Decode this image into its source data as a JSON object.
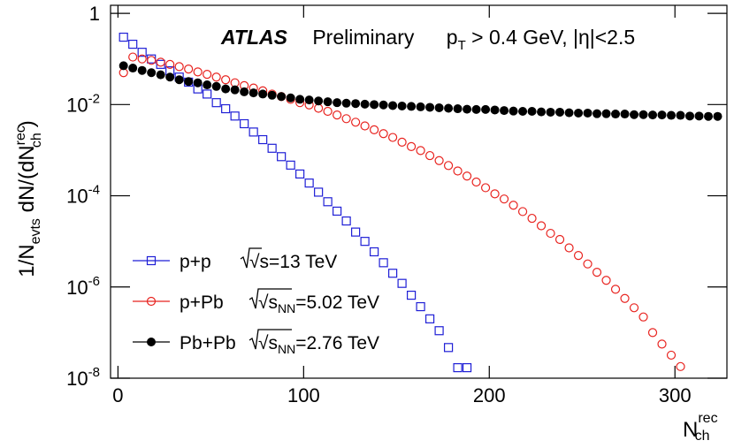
{
  "chart_data": {
    "type": "scatter",
    "log_y": true,
    "title_parts": {
      "experiment": "ATLAS",
      "status": "Preliminary",
      "cut_p": "p",
      "cut_sub": "T",
      "cut_rest": " > 0.4 GeV, |η|<2.5"
    },
    "ylabel_parts": {
      "a": "1/N",
      "a_sub": "evts",
      "b": " dN/(dN",
      "b_sup": "rec",
      "b_sub": "ch",
      "c": ")"
    },
    "xlabel_parts": {
      "a": "N",
      "a_sup": "rec",
      "a_sub": "ch"
    },
    "xlim": [
      -4,
      328
    ],
    "xticks": [
      0,
      100,
      200,
      300
    ],
    "ylim": [
      1e-08,
      1.5
    ],
    "yticks": [
      1,
      {
        "value": 0.01,
        "label": "10",
        "sup": "-2"
      },
      {
        "value": 0.0001,
        "label": "10",
        "sup": "-4"
      },
      {
        "value": 1e-06,
        "label": "10",
        "sup": "-6"
      },
      {
        "value": 1e-08,
        "label": "10",
        "sup": "-8"
      }
    ],
    "series": [
      {
        "name": "p+p",
        "energy": [
          "√s",
          "=13 TeV"
        ],
        "color": "#1f1fd6",
        "marker": "square",
        "x": [
          3,
          8,
          13,
          18,
          23,
          28,
          33,
          38,
          43,
          48,
          53,
          58,
          63,
          68,
          73,
          78,
          83,
          88,
          93,
          98,
          103,
          108,
          113,
          118,
          123,
          128,
          133,
          138,
          143,
          148,
          153,
          158,
          163,
          168,
          173,
          178,
          183,
          188
        ],
        "values": [
          0.3,
          0.21,
          0.14,
          0.1,
          0.076,
          0.055,
          0.04,
          0.031,
          0.022,
          0.017,
          0.011,
          0.0081,
          0.0056,
          0.0038,
          0.0025,
          0.0017,
          0.0011,
          0.00072,
          0.00047,
          0.0003,
          0.00019,
          0.00012,
          7.4e-05,
          4.6e-05,
          2.8e-05,
          1.6e-05,
          1e-05,
          5.9e-06,
          3.4e-06,
          2e-06,
          1.2e-06,
          6.6e-07,
          3.7e-07,
          2e-07,
          1.1e-07,
          4.7e-08,
          1.7e-08,
          1.7e-08
        ]
      },
      {
        "name": "p+Pb",
        "energy": [
          "√s",
          "NN",
          "=5.02 TeV"
        ],
        "color": "#e8231f",
        "marker": "circle",
        "x": [
          3,
          8,
          13,
          18,
          23,
          28,
          33,
          38,
          43,
          48,
          53,
          58,
          63,
          68,
          73,
          78,
          83,
          88,
          93,
          98,
          103,
          108,
          113,
          118,
          123,
          128,
          133,
          138,
          143,
          148,
          153,
          158,
          163,
          168,
          173,
          178,
          183,
          188,
          193,
          198,
          203,
          208,
          213,
          218,
          223,
          228,
          233,
          238,
          243,
          248,
          253,
          258,
          263,
          268,
          273,
          278,
          283,
          288,
          293,
          298,
          303
        ],
        "values": [
          0.05,
          0.11,
          0.1,
          0.093,
          0.085,
          0.076,
          0.068,
          0.06,
          0.052,
          0.046,
          0.04,
          0.035,
          0.03,
          0.026,
          0.023,
          0.02,
          0.017,
          0.015,
          0.013,
          0.011,
          0.0098,
          0.0083,
          0.0071,
          0.0059,
          0.0049,
          0.0041,
          0.0034,
          0.0028,
          0.0023,
          0.0019,
          0.0015,
          0.0012,
          0.00098,
          0.00076,
          0.00059,
          0.00046,
          0.00035,
          0.00027,
          0.0002,
          0.00015,
          0.00011,
          8.5e-05,
          6.2e-05,
          4.5e-05,
          3.2e-05,
          2.2e-05,
          1.5e-05,
          1.1e-05,
          7.2e-06,
          4.9e-06,
          3.2e-06,
          2.1e-06,
          1.4e-06,
          8.9e-07,
          5.6e-07,
          3.5e-07,
          2.2e-07,
          1e-07,
          5.6e-08,
          3.2e-08,
          1.8e-08
        ]
      },
      {
        "name": "Pb+Pb",
        "energy": [
          "√s",
          "NN",
          "=2.76 TeV"
        ],
        "color": "#000000",
        "marker": "dot",
        "x": [
          3,
          8,
          13,
          18,
          23,
          28,
          33,
          38,
          43,
          48,
          53,
          58,
          63,
          68,
          73,
          78,
          83,
          88,
          93,
          98,
          103,
          108,
          113,
          118,
          123,
          128,
          133,
          138,
          143,
          148,
          153,
          158,
          163,
          168,
          173,
          178,
          183,
          188,
          193,
          198,
          203,
          208,
          213,
          218,
          223,
          228,
          233,
          238,
          243,
          248,
          253,
          258,
          263,
          268,
          273,
          278,
          283,
          288,
          293,
          298,
          303,
          308,
          313,
          318,
          323
        ],
        "values": [
          0.071,
          0.063,
          0.056,
          0.05,
          0.045,
          0.04,
          0.035,
          0.032,
          0.03,
          0.027,
          0.025,
          0.022,
          0.021,
          0.019,
          0.018,
          0.017,
          0.016,
          0.015,
          0.014,
          0.013,
          0.0126,
          0.012,
          0.0115,
          0.011,
          0.0107,
          0.0105,
          0.0102,
          0.01,
          0.0098,
          0.0095,
          0.0093,
          0.0091,
          0.0089,
          0.0087,
          0.0085,
          0.0083,
          0.0081,
          0.0079,
          0.0078,
          0.0078,
          0.0076,
          0.0074,
          0.0072,
          0.0071,
          0.0071,
          0.0069,
          0.0068,
          0.0068,
          0.0066,
          0.0065,
          0.0065,
          0.0063,
          0.0063,
          0.0062,
          0.0062,
          0.006,
          0.006,
          0.0059,
          0.0059,
          0.0058,
          0.0058,
          0.0056,
          0.0056,
          0.0055,
          0.0055
        ]
      }
    ]
  }
}
